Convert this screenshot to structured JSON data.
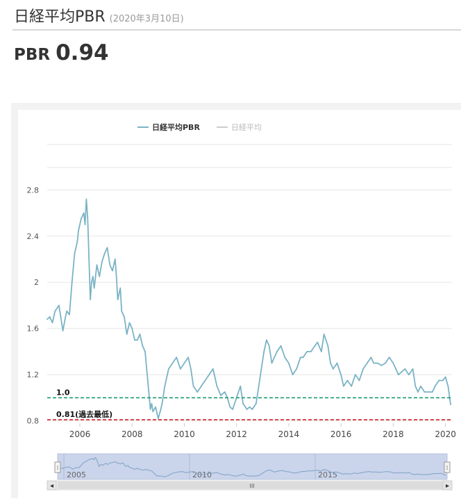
{
  "header": {
    "title": "日経平均PBR",
    "date": "(2020年3月10日)"
  },
  "readout": {
    "label": "PBR",
    "value": "0.94"
  },
  "colors": {
    "series": "#7ab3c5",
    "inactive_legend": "#cccccc",
    "line_1_0": "#1a9b6c",
    "line_low": "#d0202a",
    "navigator_fill": "#cad4ea",
    "grid": "#e6e6e6"
  },
  "chart_data": {
    "type": "line",
    "legend": [
      {
        "name": "日経平均PBR",
        "active": true
      },
      {
        "name": "日経平均",
        "active": false
      }
    ],
    "legend_position": "top-center",
    "x_ticks": [
      "2006",
      "2008",
      "2010",
      "2012",
      "2014",
      "2016",
      "2018",
      "2020"
    ],
    "y_ticks": [
      "0.8",
      "1.2",
      "1.6",
      "2",
      "2.4",
      "2.8"
    ],
    "xlim": [
      2004.75,
      2020.25
    ],
    "ylim": [
      0.78,
      2.88
    ],
    "grid": "horizontal",
    "reference_lines": [
      {
        "value": 1.0,
        "label": "1.0",
        "style": "dashed"
      },
      {
        "value": 0.81,
        "label": "0.81(過去最低)",
        "style": "dashed"
      }
    ],
    "series": [
      {
        "name": "日経平均PBR",
        "x": [
          2004.75,
          2004.85,
          2004.95,
          2005.05,
          2005.2,
          2005.35,
          2005.45,
          2005.5,
          2005.6,
          2005.7,
          2005.8,
          2005.9,
          2005.95,
          2006.05,
          2006.15,
          2006.2,
          2006.25,
          2006.3,
          2006.35,
          2006.4,
          2006.45,
          2006.5,
          2006.55,
          2006.65,
          2006.75,
          2006.85,
          2006.95,
          2007.05,
          2007.15,
          2007.25,
          2007.35,
          2007.4,
          2007.45,
          2007.55,
          2007.6,
          2007.7,
          2007.8,
          2007.9,
          2008.0,
          2008.1,
          2008.2,
          2008.3,
          2008.4,
          2008.5,
          2008.6,
          2008.7,
          2008.75,
          2008.8,
          2008.9,
          2009.0,
          2009.1,
          2009.15,
          2009.25,
          2009.4,
          2009.55,
          2009.7,
          2009.85,
          2010.0,
          2010.15,
          2010.25,
          2010.35,
          2010.5,
          2010.65,
          2010.8,
          2010.95,
          2011.1,
          2011.15,
          2011.25,
          2011.4,
          2011.55,
          2011.65,
          2011.75,
          2011.85,
          2012.0,
          2012.15,
          2012.25,
          2012.4,
          2012.5,
          2012.6,
          2012.75,
          2012.85,
          2012.95,
          2013.05,
          2013.15,
          2013.25,
          2013.35,
          2013.45,
          2013.55,
          2013.7,
          2013.85,
          2014.0,
          2014.15,
          2014.3,
          2014.45,
          2014.55,
          2014.7,
          2014.85,
          2015.0,
          2015.1,
          2015.25,
          2015.35,
          2015.5,
          2015.6,
          2015.7,
          2015.85,
          2016.0,
          2016.1,
          2016.25,
          2016.4,
          2016.55,
          2016.7,
          2016.85,
          2017.0,
          2017.15,
          2017.25,
          2017.4,
          2017.55,
          2017.7,
          2017.85,
          2018.0,
          2018.1,
          2018.2,
          2018.3,
          2018.45,
          2018.6,
          2018.75,
          2018.85,
          2018.95,
          2019.05,
          2019.2,
          2019.35,
          2019.5,
          2019.6,
          2019.75,
          2019.9,
          2020.0,
          2020.1,
          2020.2
        ],
        "values": [
          1.68,
          1.7,
          1.65,
          1.75,
          1.8,
          1.58,
          1.7,
          1.75,
          1.72,
          2.0,
          2.25,
          2.35,
          2.45,
          2.55,
          2.6,
          2.5,
          2.72,
          2.55,
          2.2,
          1.85,
          2.0,
          2.05,
          1.95,
          2.15,
          2.05,
          2.18,
          2.25,
          2.3,
          2.15,
          2.1,
          2.2,
          2.05,
          1.85,
          1.95,
          1.75,
          1.7,
          1.55,
          1.65,
          1.6,
          1.5,
          1.5,
          1.55,
          1.45,
          1.4,
          1.15,
          0.9,
          0.95,
          0.88,
          0.92,
          0.82,
          0.9,
          0.95,
          1.1,
          1.25,
          1.3,
          1.35,
          1.25,
          1.3,
          1.35,
          1.25,
          1.1,
          1.05,
          1.1,
          1.15,
          1.2,
          1.25,
          1.2,
          1.1,
          1.02,
          1.05,
          1.0,
          0.92,
          0.9,
          1.0,
          1.1,
          0.95,
          0.9,
          0.92,
          0.9,
          0.95,
          1.1,
          1.25,
          1.4,
          1.5,
          1.45,
          1.3,
          1.35,
          1.4,
          1.45,
          1.35,
          1.3,
          1.2,
          1.25,
          1.35,
          1.35,
          1.4,
          1.4,
          1.45,
          1.48,
          1.4,
          1.55,
          1.45,
          1.3,
          1.25,
          1.3,
          1.2,
          1.1,
          1.15,
          1.1,
          1.2,
          1.15,
          1.25,
          1.3,
          1.35,
          1.3,
          1.3,
          1.28,
          1.3,
          1.35,
          1.3,
          1.25,
          1.2,
          1.22,
          1.25,
          1.2,
          1.25,
          1.1,
          1.05,
          1.1,
          1.05,
          1.05,
          1.05,
          1.1,
          1.15,
          1.15,
          1.18,
          1.1,
          0.94
        ]
      }
    ],
    "navigator": {
      "ticks": [
        "2005",
        "2010",
        "2015"
      ],
      "scrollbar_left": "⁞",
      "scrollbar_right": "⁞",
      "scrollbar_grip": "III",
      "arrow_left": "◂",
      "arrow_right": "▸"
    }
  }
}
